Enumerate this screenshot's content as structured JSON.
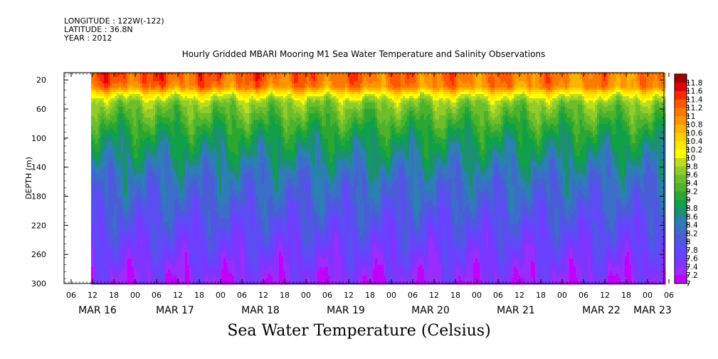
{
  "header": {
    "longitude": "LONGITUDE : 122W(-122)",
    "latitude": "LATITUDE : 36.8N",
    "year": "YEAR : 2012"
  },
  "chart_data": {
    "type": "heatmap",
    "title": "Hourly Gridded MBARI Mooring M1 Sea Water Temperature and Salinity Observations",
    "xlabel": "Sea Water Temperature (Celsius)",
    "ylabel": "DEPTH (m)",
    "ylim": [
      300,
      10
    ],
    "y_ticks": [
      20,
      60,
      100,
      140,
      180,
      220,
      260,
      300
    ],
    "x_hour_ticks": [
      "06",
      "12",
      "18",
      "00",
      "06",
      "12",
      "18",
      "00",
      "06",
      "12",
      "18",
      "00",
      "06",
      "12",
      "18",
      "00",
      "06",
      "12",
      "18",
      "00",
      "06",
      "12",
      "18",
      "00",
      "06",
      "12",
      "18",
      "00",
      "06"
    ],
    "x_date_labels": [
      "MAR 16",
      "MAR 17",
      "MAR 18",
      "MAR 19",
      "MAR 20",
      "MAR 21",
      "MAR 22",
      "MAR 23"
    ],
    "data_start": "MAR 16 12:00",
    "colorbar_levels": [
      7,
      7.2,
      7.4,
      7.6,
      7.8,
      8,
      8.2,
      8.4,
      8.6,
      8.8,
      9,
      9.2,
      9.4,
      9.6,
      9.8,
      10,
      10.2,
      10.4,
      10.6,
      10.8,
      11,
      11.2,
      11.4,
      11.6,
      11.8
    ],
    "colorbar_colors": [
      "#c000ff",
      "#9a2cff",
      "#7d35ff",
      "#6a41ff",
      "#5a4ef2",
      "#4b5cd8",
      "#3a6ec8",
      "#2a80b0",
      "#1a9070",
      "#10a048",
      "#2ca632",
      "#4db22c",
      "#6dbe2a",
      "#92cc28",
      "#bcdc1e",
      "#ffff00",
      "#ffe800",
      "#ffd000",
      "#ffb200",
      "#ff9400",
      "#ff7800",
      "#ff5600",
      "#ff2800",
      "#e00000",
      "#a00000"
    ],
    "profile": [
      {
        "depth": 10,
        "temp": 11.4
      },
      {
        "depth": 20,
        "temp": 11.3
      },
      {
        "depth": 30,
        "temp": 11.1
      },
      {
        "depth": 40,
        "temp": 10.2
      },
      {
        "depth": 50,
        "temp": 9.7
      },
      {
        "depth": 60,
        "temp": 9.5
      },
      {
        "depth": 80,
        "temp": 9.2
      },
      {
        "depth": 100,
        "temp": 8.9
      },
      {
        "depth": 120,
        "temp": 8.7
      },
      {
        "depth": 140,
        "temp": 8.5
      },
      {
        "depth": 160,
        "temp": 8.3
      },
      {
        "depth": 180,
        "temp": 8.2
      },
      {
        "depth": 200,
        "temp": 8.05
      },
      {
        "depth": 220,
        "temp": 7.9
      },
      {
        "depth": 240,
        "temp": 7.75
      },
      {
        "depth": 260,
        "temp": 7.6
      },
      {
        "depth": 280,
        "temp": 7.45
      },
      {
        "depth": 300,
        "temp": 7.3
      }
    ]
  }
}
